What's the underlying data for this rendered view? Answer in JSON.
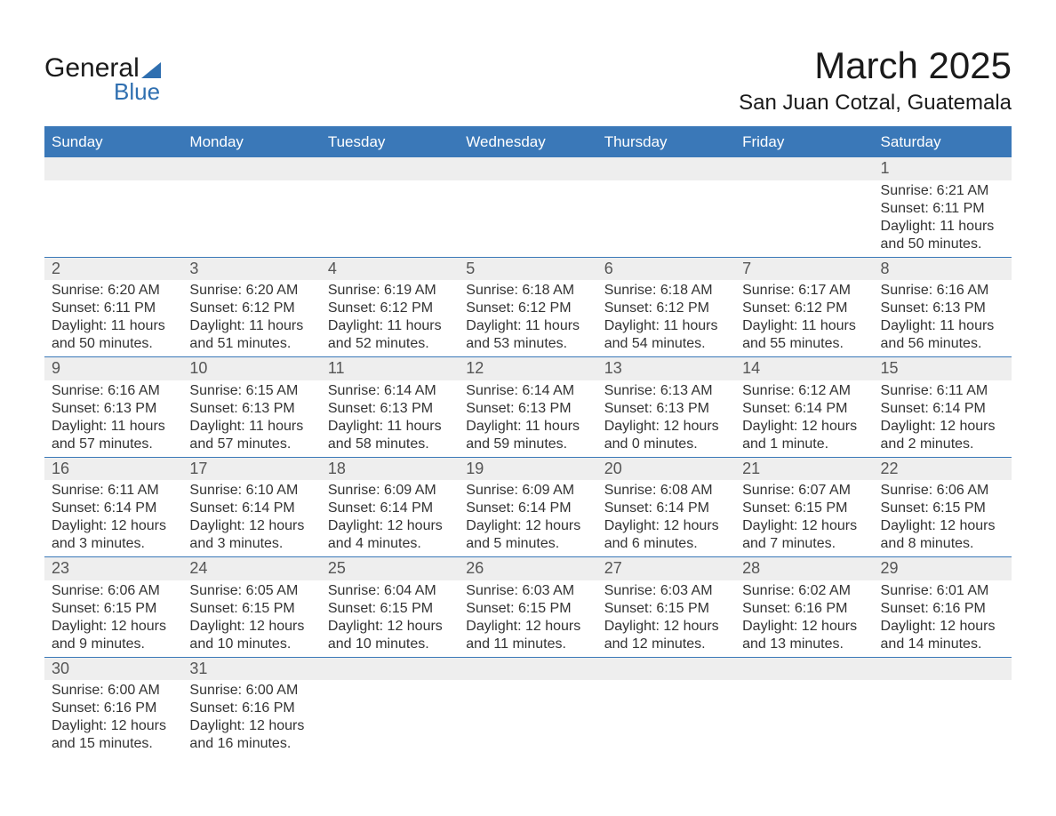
{
  "logo": {
    "word1": "General",
    "word2": "Blue",
    "brand_color": "#2f6fb0"
  },
  "title": "March 2025",
  "location": "San Juan Cotzal, Guatemala",
  "columns": [
    "Sunday",
    "Monday",
    "Tuesday",
    "Wednesday",
    "Thursday",
    "Friday",
    "Saturday"
  ],
  "colors": {
    "header_bg": "#3a78b8",
    "header_text": "#ffffff",
    "daynum_bg": "#eeeeee",
    "daynum_text": "#555555",
    "body_text": "#333333",
    "rule": "#3a78b8",
    "page_bg": "#ffffff"
  },
  "typography": {
    "title_fontsize": 42,
    "location_fontsize": 24,
    "header_fontsize": 17,
    "daynum_fontsize": 18,
    "body_fontsize": 16
  },
  "weeks": [
    [
      null,
      null,
      null,
      null,
      null,
      null,
      {
        "day": "1",
        "sunrise": "Sunrise: 6:21 AM",
        "sunset": "Sunset: 6:11 PM",
        "daylight1": "Daylight: 11 hours",
        "daylight2": "and 50 minutes."
      }
    ],
    [
      {
        "day": "2",
        "sunrise": "Sunrise: 6:20 AM",
        "sunset": "Sunset: 6:11 PM",
        "daylight1": "Daylight: 11 hours",
        "daylight2": "and 50 minutes."
      },
      {
        "day": "3",
        "sunrise": "Sunrise: 6:20 AM",
        "sunset": "Sunset: 6:12 PM",
        "daylight1": "Daylight: 11 hours",
        "daylight2": "and 51 minutes."
      },
      {
        "day": "4",
        "sunrise": "Sunrise: 6:19 AM",
        "sunset": "Sunset: 6:12 PM",
        "daylight1": "Daylight: 11 hours",
        "daylight2": "and 52 minutes."
      },
      {
        "day": "5",
        "sunrise": "Sunrise: 6:18 AM",
        "sunset": "Sunset: 6:12 PM",
        "daylight1": "Daylight: 11 hours",
        "daylight2": "and 53 minutes."
      },
      {
        "day": "6",
        "sunrise": "Sunrise: 6:18 AM",
        "sunset": "Sunset: 6:12 PM",
        "daylight1": "Daylight: 11 hours",
        "daylight2": "and 54 minutes."
      },
      {
        "day": "7",
        "sunrise": "Sunrise: 6:17 AM",
        "sunset": "Sunset: 6:12 PM",
        "daylight1": "Daylight: 11 hours",
        "daylight2": "and 55 minutes."
      },
      {
        "day": "8",
        "sunrise": "Sunrise: 6:16 AM",
        "sunset": "Sunset: 6:13 PM",
        "daylight1": "Daylight: 11 hours",
        "daylight2": "and 56 minutes."
      }
    ],
    [
      {
        "day": "9",
        "sunrise": "Sunrise: 6:16 AM",
        "sunset": "Sunset: 6:13 PM",
        "daylight1": "Daylight: 11 hours",
        "daylight2": "and 57 minutes."
      },
      {
        "day": "10",
        "sunrise": "Sunrise: 6:15 AM",
        "sunset": "Sunset: 6:13 PM",
        "daylight1": "Daylight: 11 hours",
        "daylight2": "and 57 minutes."
      },
      {
        "day": "11",
        "sunrise": "Sunrise: 6:14 AM",
        "sunset": "Sunset: 6:13 PM",
        "daylight1": "Daylight: 11 hours",
        "daylight2": "and 58 minutes."
      },
      {
        "day": "12",
        "sunrise": "Sunrise: 6:14 AM",
        "sunset": "Sunset: 6:13 PM",
        "daylight1": "Daylight: 11 hours",
        "daylight2": "and 59 minutes."
      },
      {
        "day": "13",
        "sunrise": "Sunrise: 6:13 AM",
        "sunset": "Sunset: 6:13 PM",
        "daylight1": "Daylight: 12 hours",
        "daylight2": "and 0 minutes."
      },
      {
        "day": "14",
        "sunrise": "Sunrise: 6:12 AM",
        "sunset": "Sunset: 6:14 PM",
        "daylight1": "Daylight: 12 hours",
        "daylight2": "and 1 minute."
      },
      {
        "day": "15",
        "sunrise": "Sunrise: 6:11 AM",
        "sunset": "Sunset: 6:14 PM",
        "daylight1": "Daylight: 12 hours",
        "daylight2": "and 2 minutes."
      }
    ],
    [
      {
        "day": "16",
        "sunrise": "Sunrise: 6:11 AM",
        "sunset": "Sunset: 6:14 PM",
        "daylight1": "Daylight: 12 hours",
        "daylight2": "and 3 minutes."
      },
      {
        "day": "17",
        "sunrise": "Sunrise: 6:10 AM",
        "sunset": "Sunset: 6:14 PM",
        "daylight1": "Daylight: 12 hours",
        "daylight2": "and 3 minutes."
      },
      {
        "day": "18",
        "sunrise": "Sunrise: 6:09 AM",
        "sunset": "Sunset: 6:14 PM",
        "daylight1": "Daylight: 12 hours",
        "daylight2": "and 4 minutes."
      },
      {
        "day": "19",
        "sunrise": "Sunrise: 6:09 AM",
        "sunset": "Sunset: 6:14 PM",
        "daylight1": "Daylight: 12 hours",
        "daylight2": "and 5 minutes."
      },
      {
        "day": "20",
        "sunrise": "Sunrise: 6:08 AM",
        "sunset": "Sunset: 6:14 PM",
        "daylight1": "Daylight: 12 hours",
        "daylight2": "and 6 minutes."
      },
      {
        "day": "21",
        "sunrise": "Sunrise: 6:07 AM",
        "sunset": "Sunset: 6:15 PM",
        "daylight1": "Daylight: 12 hours",
        "daylight2": "and 7 minutes."
      },
      {
        "day": "22",
        "sunrise": "Sunrise: 6:06 AM",
        "sunset": "Sunset: 6:15 PM",
        "daylight1": "Daylight: 12 hours",
        "daylight2": "and 8 minutes."
      }
    ],
    [
      {
        "day": "23",
        "sunrise": "Sunrise: 6:06 AM",
        "sunset": "Sunset: 6:15 PM",
        "daylight1": "Daylight: 12 hours",
        "daylight2": "and 9 minutes."
      },
      {
        "day": "24",
        "sunrise": "Sunrise: 6:05 AM",
        "sunset": "Sunset: 6:15 PM",
        "daylight1": "Daylight: 12 hours",
        "daylight2": "and 10 minutes."
      },
      {
        "day": "25",
        "sunrise": "Sunrise: 6:04 AM",
        "sunset": "Sunset: 6:15 PM",
        "daylight1": "Daylight: 12 hours",
        "daylight2": "and 10 minutes."
      },
      {
        "day": "26",
        "sunrise": "Sunrise: 6:03 AM",
        "sunset": "Sunset: 6:15 PM",
        "daylight1": "Daylight: 12 hours",
        "daylight2": "and 11 minutes."
      },
      {
        "day": "27",
        "sunrise": "Sunrise: 6:03 AM",
        "sunset": "Sunset: 6:15 PM",
        "daylight1": "Daylight: 12 hours",
        "daylight2": "and 12 minutes."
      },
      {
        "day": "28",
        "sunrise": "Sunrise: 6:02 AM",
        "sunset": "Sunset: 6:16 PM",
        "daylight1": "Daylight: 12 hours",
        "daylight2": "and 13 minutes."
      },
      {
        "day": "29",
        "sunrise": "Sunrise: 6:01 AM",
        "sunset": "Sunset: 6:16 PM",
        "daylight1": "Daylight: 12 hours",
        "daylight2": "and 14 minutes."
      }
    ],
    [
      {
        "day": "30",
        "sunrise": "Sunrise: 6:00 AM",
        "sunset": "Sunset: 6:16 PM",
        "daylight1": "Daylight: 12 hours",
        "daylight2": "and 15 minutes."
      },
      {
        "day": "31",
        "sunrise": "Sunrise: 6:00 AM",
        "sunset": "Sunset: 6:16 PM",
        "daylight1": "Daylight: 12 hours",
        "daylight2": "and 16 minutes."
      },
      null,
      null,
      null,
      null,
      null
    ]
  ]
}
